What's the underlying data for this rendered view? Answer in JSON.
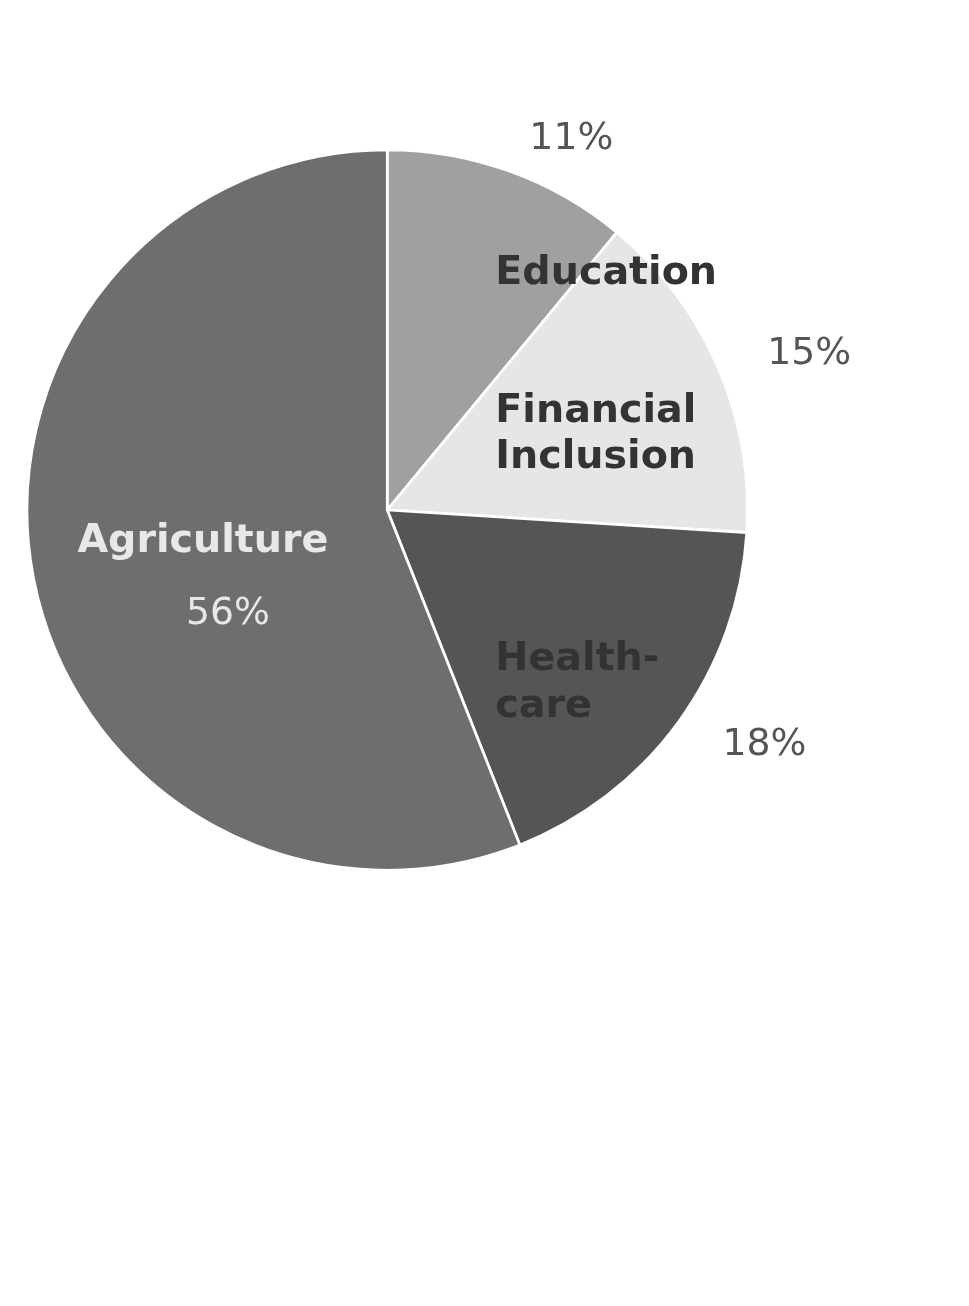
{
  "chart_data": {
    "type": "pie",
    "categories": [
      "Education",
      "Financial Inclusion",
      "Health-care",
      "Agriculture"
    ],
    "values": [
      11,
      15,
      18,
      56
    ],
    "colors": [
      "#a0a0a0",
      "#e6e6e6",
      "#555555",
      "#6e6e6e"
    ],
    "value_labels": [
      "11%",
      "15%",
      "18%",
      "56%"
    ],
    "legend": false
  }
}
